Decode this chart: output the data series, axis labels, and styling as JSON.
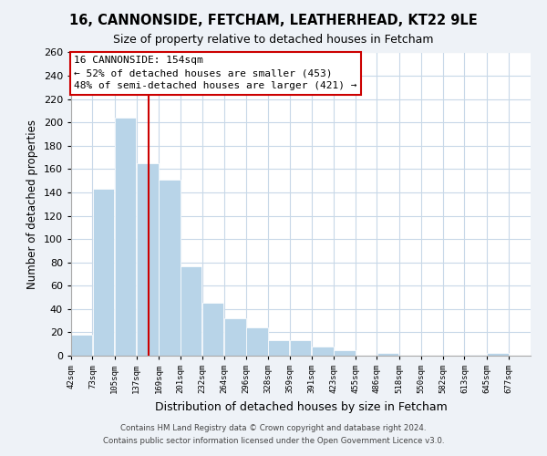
{
  "title": "16, CANNONSIDE, FETCHAM, LEATHERHEAD, KT22 9LE",
  "subtitle": "Size of property relative to detached houses in Fetcham",
  "xlabel": "Distribution of detached houses by size in Fetcham",
  "ylabel": "Number of detached properties",
  "bar_left_edges": [
    42,
    73,
    105,
    137,
    169,
    201,
    232,
    264,
    296,
    328,
    359,
    391,
    423,
    455,
    486,
    518,
    550,
    582,
    613,
    645
  ],
  "bar_widths": [
    31,
    32,
    32,
    32,
    32,
    31,
    32,
    32,
    32,
    31,
    32,
    32,
    32,
    31,
    32,
    32,
    32,
    31,
    32,
    32
  ],
  "bar_heights": [
    18,
    143,
    204,
    165,
    151,
    77,
    45,
    32,
    24,
    13,
    13,
    8,
    5,
    0,
    2,
    0,
    0,
    0,
    1,
    2
  ],
  "bar_color": "#b8d4e8",
  "bar_edge_color": "#ffffff",
  "vline_x": 154,
  "vline_color": "#cc0000",
  "annotation_text_title": "16 CANNONSIDE: 154sqm",
  "annotation_text_line2": "← 52% of detached houses are smaller (453)",
  "annotation_text_line3": "48% of semi-detached houses are larger (421) →",
  "annotation_box_color": "#ffffff",
  "annotation_box_edge": "#cc0000",
  "tick_labels": [
    "42sqm",
    "73sqm",
    "105sqm",
    "137sqm",
    "169sqm",
    "201sqm",
    "232sqm",
    "264sqm",
    "296sqm",
    "328sqm",
    "359sqm",
    "391sqm",
    "423sqm",
    "455sqm",
    "486sqm",
    "518sqm",
    "550sqm",
    "582sqm",
    "613sqm",
    "645sqm",
    "677sqm"
  ],
  "ylim": [
    0,
    260
  ],
  "yticks": [
    0,
    20,
    40,
    60,
    80,
    100,
    120,
    140,
    160,
    180,
    200,
    220,
    240,
    260
  ],
  "footer_line1": "Contains HM Land Registry data © Crown copyright and database right 2024.",
  "footer_line2": "Contains public sector information licensed under the Open Government Licence v3.0.",
  "bg_color": "#eef2f7",
  "plot_bg_color": "#ffffff",
  "grid_color": "#c8d8e8"
}
